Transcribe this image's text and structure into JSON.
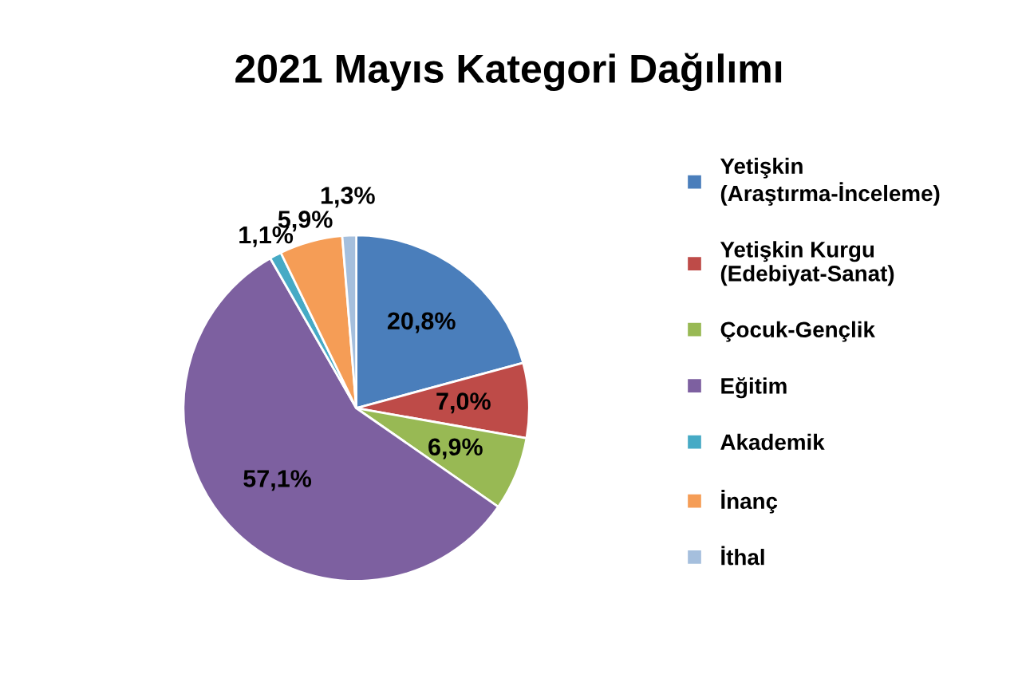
{
  "chart_data": {
    "type": "pie",
    "title": "2021 Mayıs Kategori Dağılımı",
    "categories": [
      "Yetişkin\n(Araştırma-İnceleme)",
      "Yetişkin Kurgu\n(Edebiyat-Sanat)",
      "Çocuk-Gençlik",
      "Eğitim",
      "Akademik",
      "İnanç",
      "İthal"
    ],
    "values": [
      20.8,
      7.0,
      6.9,
      57.1,
      1.1,
      5.9,
      1.3
    ],
    "value_labels": [
      "20,8%",
      "7,0%",
      "6,9%",
      "57,1%",
      "1,1%",
      "5,9%",
      "1,3%"
    ],
    "colors": [
      "#4a7ebb",
      "#be4b48",
      "#98b954",
      "#7d60a0",
      "#46aac5",
      "#f59d56",
      "#a5bfdd"
    ],
    "legend": "right"
  }
}
